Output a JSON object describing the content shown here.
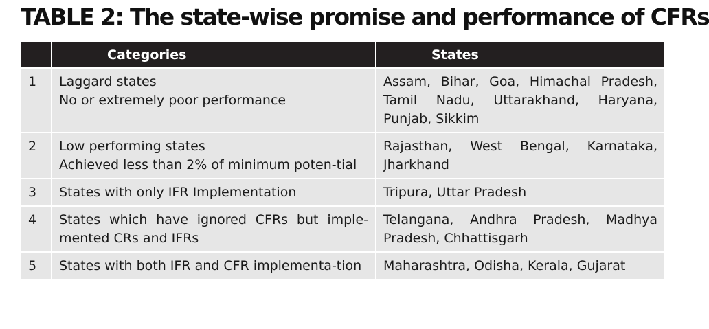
{
  "title": "TABLE 2: The state-wise promise and performance of CFRs",
  "table": {
    "headers": [
      "",
      "Categories",
      "States"
    ],
    "rows": [
      {
        "num": "1",
        "category_lines": [
          "Laggard states",
          "No or extremely poor performance"
        ],
        "states": "Assam, Bihar, Goa, Himachal Pradesh, Tamil Nadu, Uttarakhand, Haryana, Punjab, Sikkim"
      },
      {
        "num": "2",
        "category_lines": [
          "Low performing states",
          "Achieved less than 2% of minimum poten-tial"
        ],
        "states": "Rajasthan, West Bengal, Karnataka, Jharkhand"
      },
      {
        "num": "3",
        "category_lines": [
          "States with only IFR Implementation"
        ],
        "states": "Tripura, Uttar Pradesh"
      },
      {
        "num": "4",
        "category_lines": [
          "States which have ignored CFRs but imple-mented CRs and IFRs"
        ],
        "states": "Telangana, Andhra Pradesh, Madhya Pradesh, Chhattisgarh"
      },
      {
        "num": "5",
        "category_lines": [
          "States with both IFR and CFR implementa-tion"
        ],
        "states": "Maharashtra, Odisha, Kerala, Gujarat"
      }
    ]
  }
}
